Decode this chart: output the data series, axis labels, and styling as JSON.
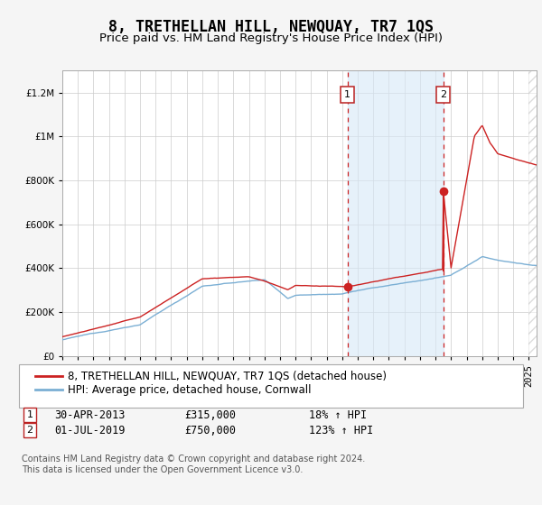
{
  "title": "8, TRETHELLAN HILL, NEWQUAY, TR7 1QS",
  "subtitle": "Price paid vs. HM Land Registry's House Price Index (HPI)",
  "ylabel_ticks": [
    "£0",
    "£200K",
    "£400K",
    "£600K",
    "£800K",
    "£1M",
    "£1.2M"
  ],
  "ytick_values": [
    0,
    200000,
    400000,
    600000,
    800000,
    1000000,
    1200000
  ],
  "ylim": [
    0,
    1300000
  ],
  "xlim_start": 1995.0,
  "xlim_end": 2025.5,
  "hpi_color": "#7bafd4",
  "price_color": "#cc2222",
  "background_color": "#f5f5f5",
  "plot_bg_color": "#ffffff",
  "grid_color": "#cccccc",
  "shade_color": "#d6e8f7",
  "hatch_color": "#cccccc",
  "sale1_date": 2013.33,
  "sale1_price": 315000,
  "sale2_date": 2019.5,
  "sale2_price": 750000,
  "legend_label_price": "8, TRETHELLAN HILL, NEWQUAY, TR7 1QS (detached house)",
  "legend_label_hpi": "HPI: Average price, detached house, Cornwall",
  "annotation1_date": "30-APR-2013",
  "annotation1_price": "£315,000",
  "annotation1_hpi": "18% ↑ HPI",
  "annotation2_date": "01-JUL-2019",
  "annotation2_price": "£750,000",
  "annotation2_hpi": "123% ↑ HPI",
  "footnote": "Contains HM Land Registry data © Crown copyright and database right 2024.\nThis data is licensed under the Open Government Licence v3.0.",
  "title_fontsize": 12,
  "subtitle_fontsize": 9.5,
  "tick_fontsize": 7.5,
  "legend_fontsize": 8.5,
  "annotation_fontsize": 8.5,
  "footnote_fontsize": 7
}
